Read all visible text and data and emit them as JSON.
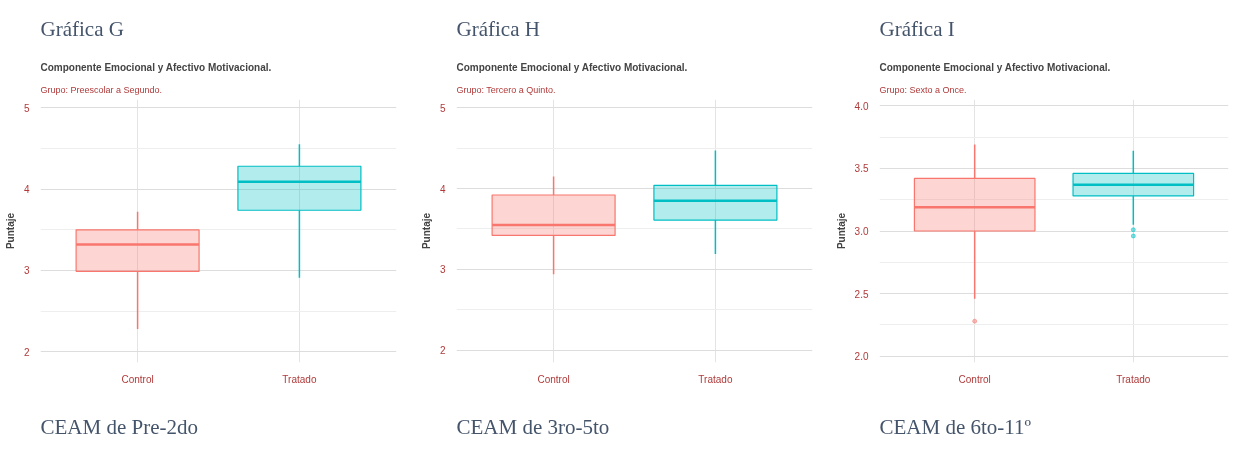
{
  "chart_data": [
    {
      "type": "box",
      "title": "Componente Emocional y Afectivo Motivacional.",
      "subtitle": "Grupo: Preescolar a Segundo.",
      "ylabel": "Puntaje",
      "categories": [
        "Control",
        "Tratado"
      ],
      "colors": [
        "#f8766d",
        "#00bfc4"
      ],
      "boxes": [
        {
          "low": 2.28,
          "q1": 2.99,
          "median": 3.32,
          "q3": 3.5,
          "high": 3.72
        },
        {
          "low": 2.91,
          "q1": 3.74,
          "median": 4.09,
          "q3": 4.28,
          "high": 4.55
        }
      ],
      "ylim": [
        1.87,
        5.1
      ],
      "yticks": [
        2,
        3,
        4,
        5
      ],
      "grid": true,
      "annotations": [
        "Gráfica G",
        "CEAM de Pre-2do"
      ]
    },
    {
      "type": "box",
      "title": "Componente Emocional y Afectivo Motivacional.",
      "subtitle": "Grupo: Tercero a Quinto.",
      "ylabel": "Puntaje",
      "categories": [
        "Control",
        "Tratado"
      ],
      "colors": [
        "#f8766d",
        "#00bfc4"
      ],
      "boxes": [
        {
          "low": 2.94,
          "q1": 3.42,
          "median": 3.55,
          "q3": 3.92,
          "high": 4.15
        },
        {
          "low": 3.19,
          "q1": 3.61,
          "median": 3.85,
          "q3": 4.04,
          "high": 4.47
        }
      ],
      "ylim": [
        1.85,
        5.1
      ],
      "yticks": [
        2,
        3,
        4,
        5
      ],
      "grid": true,
      "annotations": [
        "Gráfica H",
        "CEAM de 3ro-5to"
      ]
    },
    {
      "type": "box",
      "title": "Componente Emocional y Afectivo Motivacional.",
      "subtitle": "Grupo: Sexto a Once.",
      "ylabel": "Puntaje",
      "categories": [
        "Control",
        "Tratado"
      ],
      "colors": [
        "#f8766d",
        "#00bfc4"
      ],
      "boxes": [
        {
          "low": 2.46,
          "q1": 3.0,
          "median": 3.19,
          "q3": 3.42,
          "high": 3.69,
          "outliers": [
            2.28
          ]
        },
        {
          "low": 3.05,
          "q1": 3.28,
          "median": 3.37,
          "q3": 3.46,
          "high": 3.64,
          "outliers": [
            3.01,
            2.96
          ]
        }
      ],
      "ylim": [
        1.95,
        4.05
      ],
      "yticks": [
        {
          "value": 2,
          "label": "2.0"
        },
        {
          "value": 2.5,
          "label": "2.5"
        },
        {
          "value": 3,
          "label": "3.0"
        },
        {
          "value": 3.5,
          "label": "3.5"
        },
        {
          "value": 4,
          "label": "4.0"
        }
      ],
      "grid": true,
      "annotations": [
        "Gráfica I",
        "CEAM de 6to-11º"
      ]
    }
  ]
}
